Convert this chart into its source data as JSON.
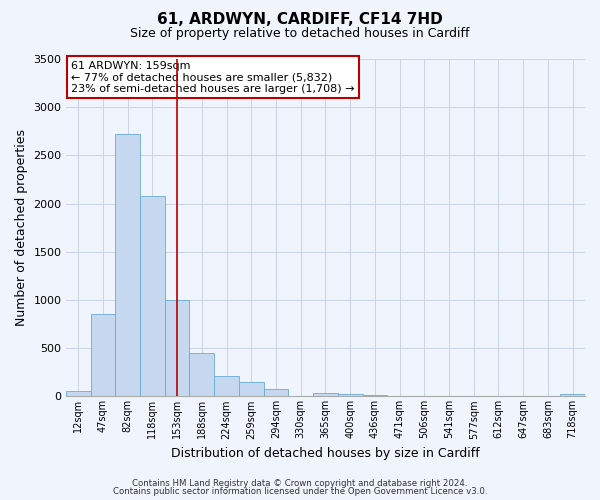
{
  "title": "61, ARDWYN, CARDIFF, CF14 7HD",
  "subtitle": "Size of property relative to detached houses in Cardiff",
  "xlabel": "Distribution of detached houses by size in Cardiff",
  "ylabel": "Number of detached properties",
  "bin_labels": [
    "12sqm",
    "47sqm",
    "82sqm",
    "118sqm",
    "153sqm",
    "188sqm",
    "224sqm",
    "259sqm",
    "294sqm",
    "330sqm",
    "365sqm",
    "400sqm",
    "436sqm",
    "471sqm",
    "506sqm",
    "541sqm",
    "577sqm",
    "612sqm",
    "647sqm",
    "683sqm",
    "718sqm"
  ],
  "bar_heights": [
    55,
    850,
    2720,
    2075,
    1005,
    450,
    210,
    145,
    75,
    0,
    35,
    20,
    10,
    0,
    0,
    0,
    0,
    0,
    0,
    0,
    25
  ],
  "bar_color": "#c5d8f0",
  "bar_edgecolor": "#6aaad4",
  "property_line_bin_index": 4,
  "property_line_color": "#bb0000",
  "ylim": [
    0,
    3500
  ],
  "annotation_text": "61 ARDWYN: 159sqm\n← 77% of detached houses are smaller (5,832)\n23% of semi-detached houses are larger (1,708) →",
  "annotation_box_edgecolor": "#bb0000",
  "footnote1": "Contains HM Land Registry data © Crown copyright and database right 2024.",
  "footnote2": "Contains public sector information licensed under the Open Government Licence v3.0.",
  "background_color": "#f0f4fc",
  "plot_bg_color": "#f0f4fc",
  "grid_color": "#c8d4e8",
  "title_fontsize": 11,
  "subtitle_fontsize": 9
}
